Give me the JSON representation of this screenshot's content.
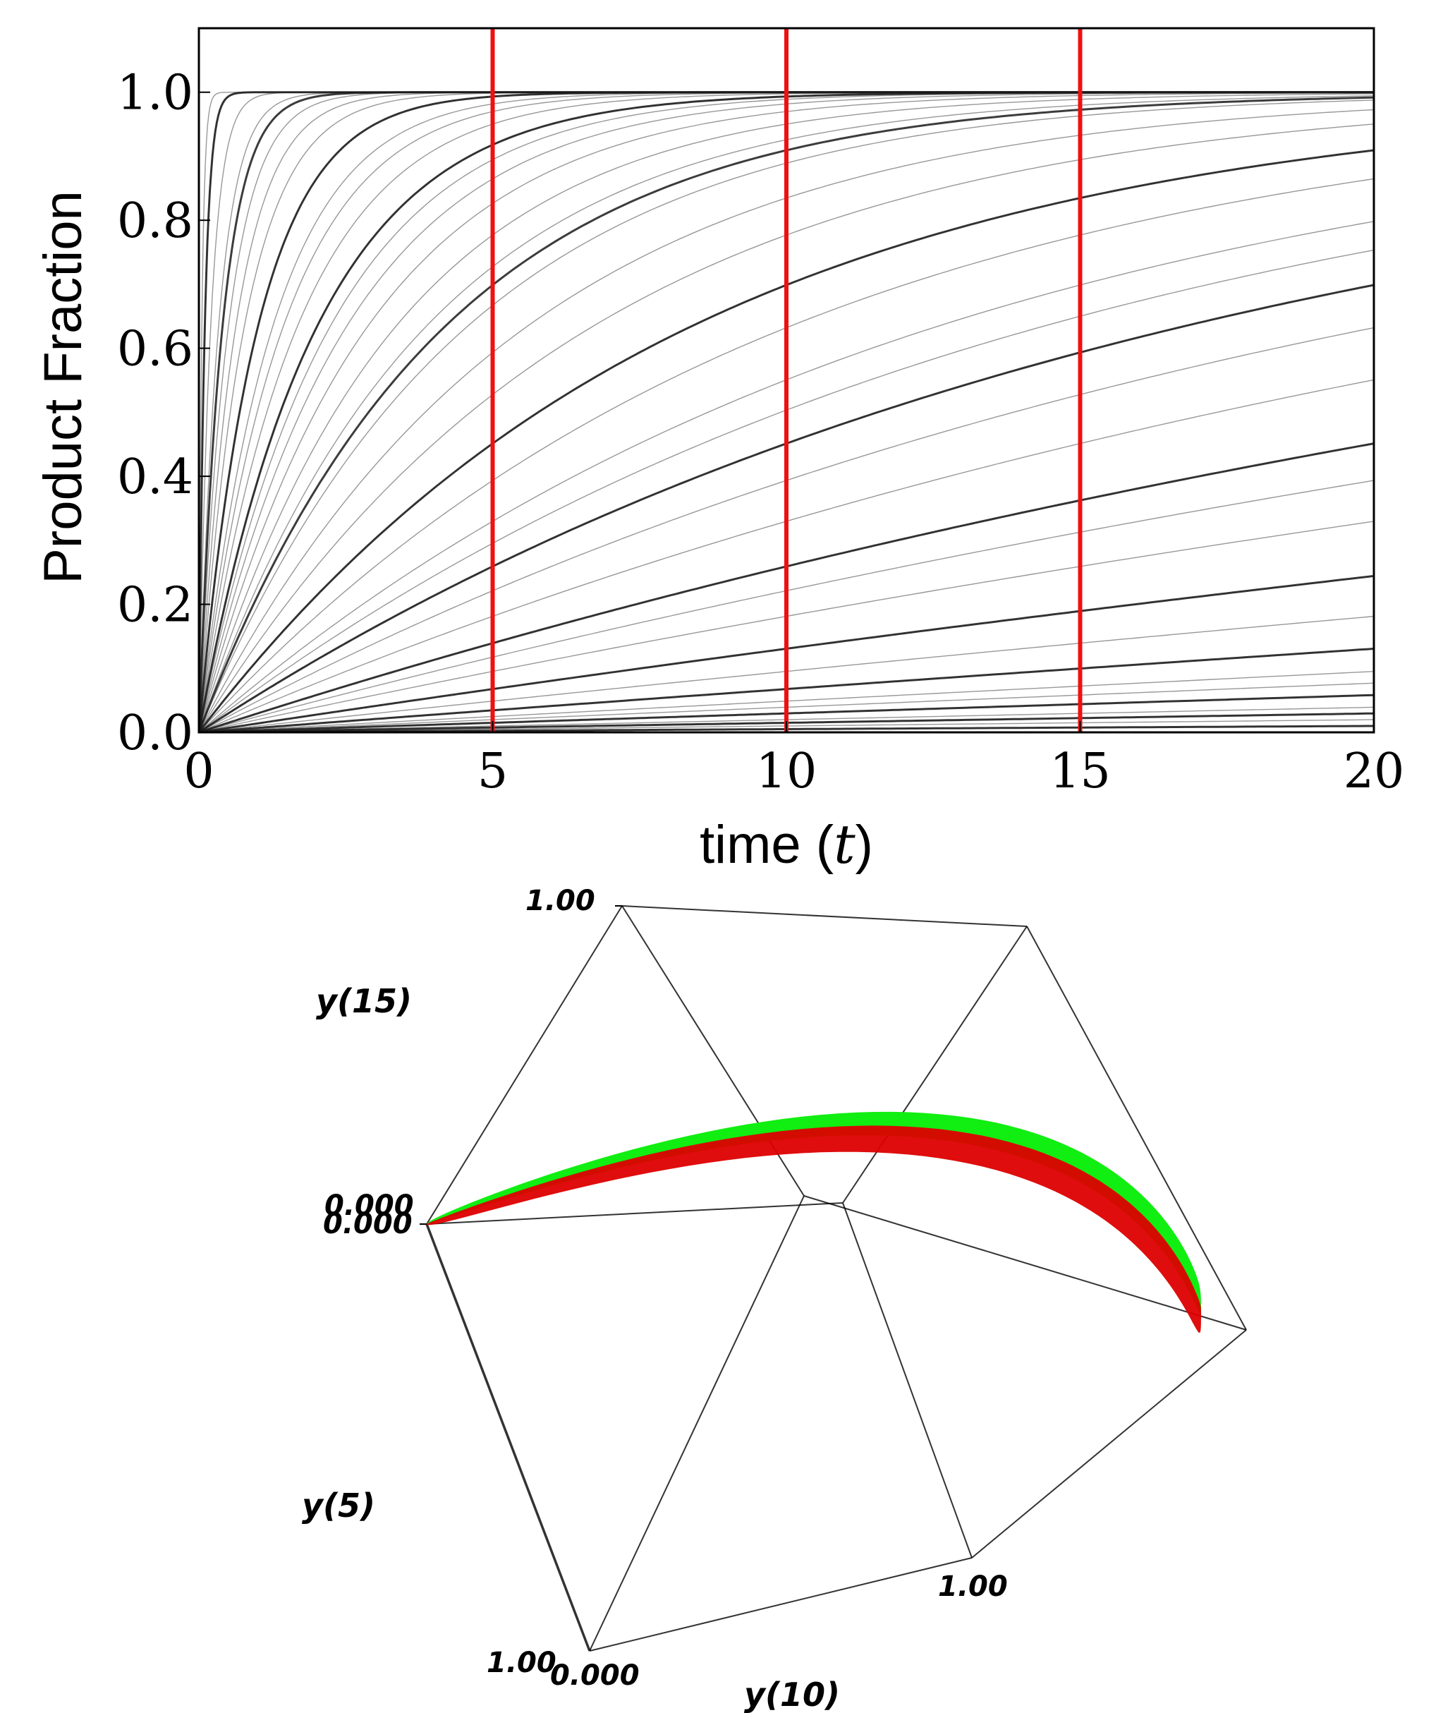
{
  "chart_data": [
    {
      "type": "line",
      "xlabel_prefix": "time (",
      "xlabel_var": "t",
      "xlabel_suffix": ")",
      "ylabel": "Product Fraction",
      "xlim": [
        0,
        20
      ],
      "ylim": [
        0,
        1.1
      ],
      "xticks": [
        "0",
        "5",
        "10",
        "15",
        "20"
      ],
      "yticks": [
        "0.0",
        "0.2",
        "0.4",
        "0.6",
        "0.8",
        "1.0"
      ],
      "curve_model": "y = 1 - exp(-k*t)",
      "series_rates": [
        0.0005,
        0.001,
        0.0015,
        0.002,
        0.003,
        0.004,
        0.005,
        0.007,
        0.01,
        0.014,
        0.02,
        0.025,
        0.03,
        0.04,
        0.05,
        0.06,
        0.07,
        0.08,
        0.1,
        0.12,
        0.15,
        0.18,
        0.22,
        0.26,
        0.3,
        0.35,
        0.4,
        0.45,
        0.5,
        0.6,
        0.7,
        0.8,
        1.0,
        1.3,
        1.6,
        2.0,
        3.0,
        5.0,
        10.0,
        20.0
      ],
      "highlight_rates": [
        0.0005,
        0.0015,
        0.003,
        0.007,
        0.014,
        0.03,
        0.06,
        0.12,
        0.24,
        0.5,
        1.0,
        2.5,
        10.0
      ],
      "line_color": "#1a1a1a",
      "vlines": {
        "x": [
          5,
          10,
          15
        ],
        "color": "#ee1111"
      },
      "grid": false
    },
    {
      "type": "scatter3d",
      "axis_labels": {
        "x": "y(5)",
        "y": "y(10)",
        "z": "y(15)"
      },
      "tick_labels": {
        "z_max": "1.00",
        "origin_a": "0.000",
        "origin_b": "0.000",
        "x_max": "1.00",
        "x_min": "0.000",
        "y_max": "1.00"
      },
      "rate_range": [
        0.0,
        2.0
      ],
      "colors": {
        "surface_a": "#11ee11",
        "surface_b": "#dd0000"
      }
    }
  ]
}
